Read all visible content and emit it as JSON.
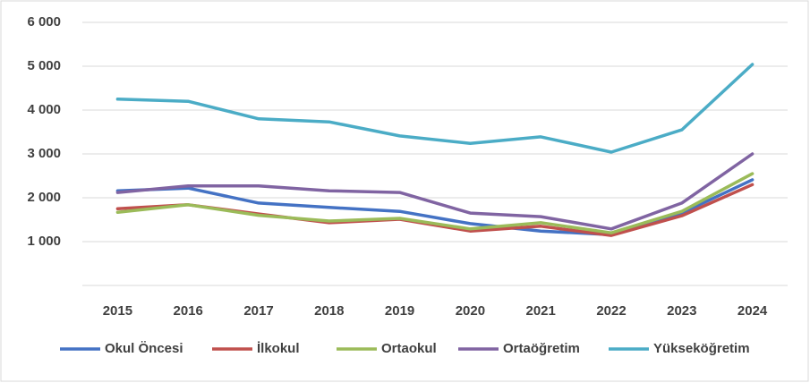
{
  "chart_data": {
    "type": "line",
    "categories": [
      "2015",
      "2016",
      "2017",
      "2018",
      "2019",
      "2020",
      "2021",
      "2022",
      "2023",
      "2024"
    ],
    "series": [
      {
        "name": "Okul Öncesi",
        "color": "#4472c4",
        "values": [
          2160,
          2220,
          1880,
          1780,
          1690,
          1410,
          1240,
          1160,
          1650,
          2410
        ]
      },
      {
        "name": "İlkokul",
        "color": "#c0504d",
        "values": [
          1750,
          1840,
          1630,
          1430,
          1510,
          1240,
          1350,
          1140,
          1590,
          2300
        ]
      },
      {
        "name": "Ortaokul",
        "color": "#9bbb59",
        "values": [
          1670,
          1840,
          1600,
          1470,
          1530,
          1290,
          1430,
          1200,
          1690,
          2550
        ]
      },
      {
        "name": "Ortaöğretim",
        "color": "#8064a2",
        "values": [
          2120,
          2270,
          2270,
          2160,
          2120,
          1650,
          1570,
          1290,
          1880,
          3000
        ]
      },
      {
        "name": "Yükseköğretim",
        "color": "#4bacc6",
        "values": [
          4250,
          4200,
          3800,
          3730,
          3410,
          3240,
          3390,
          3040,
          3550,
          5040
        ]
      }
    ],
    "ylim": [
      0,
      6000
    ],
    "yticks": [
      {
        "value": 1000,
        "label": "1 000"
      },
      {
        "value": 2000,
        "label": "2 000"
      },
      {
        "value": 3000,
        "label": "3 000"
      },
      {
        "value": 4000,
        "label": "4 000"
      },
      {
        "value": 5000,
        "label": "5 000"
      },
      {
        "value": 6000,
        "label": "6 000"
      }
    ],
    "grid": true,
    "legend": "bottom"
  }
}
